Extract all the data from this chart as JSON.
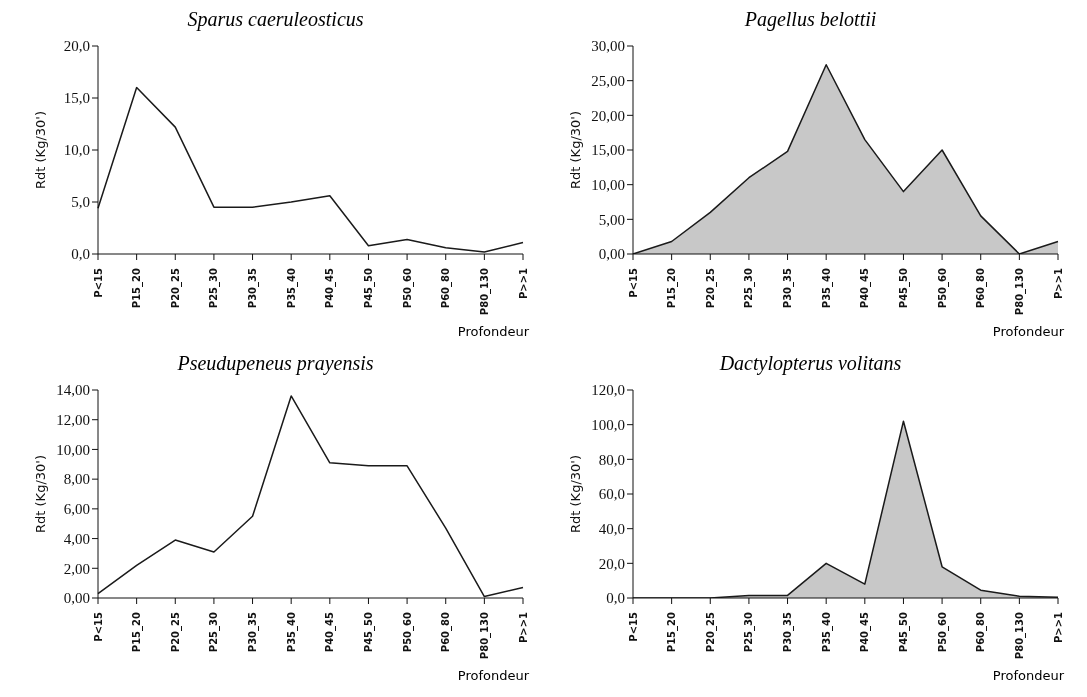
{
  "chart_data": [
    {
      "type": "line",
      "title": "Sparus caeruleosticus",
      "xlabel": "Profondeur",
      "ylabel": "Rdt (Kg/30')",
      "categories": [
        "P<15",
        "P15_20",
        "P20_25",
        "P25_30",
        "P30_35",
        "P35_40",
        "P40_45",
        "P45_50",
        "P50_60",
        "P60_80",
        "P80_130",
        "P>>1"
      ],
      "series": [
        {
          "color": "#1a1a1a",
          "values": [
            4.4,
            16.0,
            12.2,
            4.5,
            4.5,
            5.0,
            5.6,
            0.8,
            1.4,
            0.6,
            0.2,
            1.1
          ]
        }
      ],
      "ylim": [
        0,
        20
      ],
      "yticks": [
        {
          "value": 0,
          "label": "0,0"
        },
        {
          "value": 5,
          "label": "5,0"
        },
        {
          "value": 10,
          "label": "10,0"
        },
        {
          "value": 15,
          "label": "15,0"
        },
        {
          "value": 20,
          "label": "20,0"
        }
      ],
      "grid": false,
      "marker": "none"
    },
    {
      "type": "area",
      "title": "Pagellus belottii",
      "xlabel": "Profondeur",
      "ylabel": "Rdt (Kg/30')",
      "categories": [
        "P<15",
        "P15_20",
        "P20_25",
        "P25_30",
        "P30_35",
        "P35_40",
        "P40_45",
        "P45_50",
        "P50_60",
        "P60_80",
        "P80_130",
        "P>>1"
      ],
      "series": [
        {
          "color": "#c8c8c8",
          "values": [
            0,
            1.8,
            6.0,
            11.0,
            14.8,
            27.3,
            16.5,
            9.0,
            15.0,
            5.5,
            0,
            1.8
          ]
        }
      ],
      "ylim": [
        0,
        30
      ],
      "yticks": [
        {
          "value": 0,
          "label": "0,00"
        },
        {
          "value": 5,
          "label": "5,00"
        },
        {
          "value": 10,
          "label": "10,00"
        },
        {
          "value": 15,
          "label": "15,00"
        },
        {
          "value": 20,
          "label": "20,00"
        },
        {
          "value": 25,
          "label": "25,00"
        },
        {
          "value": 30,
          "label": "30,00"
        }
      ],
      "grid": false,
      "marker": "none"
    },
    {
      "type": "line",
      "title": "Pseudupeneus prayensis",
      "xlabel": "Profondeur",
      "ylabel": "Rdt (Kg/30')",
      "categories": [
        "P<15",
        "P15_20",
        "P20_25",
        "P25_30",
        "P30_35",
        "P35_40",
        "P40_45",
        "P45_50",
        "P50_60",
        "P60_80",
        "P80_130",
        "P>>1"
      ],
      "series": [
        {
          "color": "#1a1a1a",
          "values": [
            0.3,
            2.2,
            3.9,
            3.1,
            5.5,
            13.6,
            9.1,
            8.9,
            8.9,
            4.7,
            0.1,
            0.7
          ]
        }
      ],
      "ylim": [
        0,
        14
      ],
      "yticks": [
        {
          "value": 0,
          "label": "0,00"
        },
        {
          "value": 2,
          "label": "2,00"
        },
        {
          "value": 4,
          "label": "4,00"
        },
        {
          "value": 6,
          "label": "6,00"
        },
        {
          "value": 8,
          "label": "8,00"
        },
        {
          "value": 10,
          "label": "10,00"
        },
        {
          "value": 12,
          "label": "12,00"
        },
        {
          "value": 14,
          "label": "14,00"
        }
      ],
      "grid": false,
      "marker": "none"
    },
    {
      "type": "area",
      "title": "Dactylopterus volitans",
      "xlabel": "Profondeur",
      "ylabel": "Rdt (Kg/30')",
      "categories": [
        "P<15",
        "P15_20",
        "P20_25",
        "P25_30",
        "P30_35",
        "P35_40",
        "P40_45",
        "P45_50",
        "P50_60",
        "P60_80",
        "P80_130",
        "P>>1"
      ],
      "series": [
        {
          "color": "#c8c8c8",
          "values": [
            0,
            0,
            0,
            1.5,
            1.5,
            20,
            8,
            102,
            18,
            4.5,
            1,
            0.5
          ]
        }
      ],
      "ylim": [
        0,
        120
      ],
      "yticks": [
        {
          "value": 0,
          "label": "0,0"
        },
        {
          "value": 20,
          "label": "20,0"
        },
        {
          "value": 40,
          "label": "40,0"
        },
        {
          "value": 60,
          "label": "60,0"
        },
        {
          "value": 80,
          "label": "80,0"
        },
        {
          "value": 100,
          "label": "100,0"
        },
        {
          "value": 120,
          "label": "120,0"
        }
      ],
      "grid": false,
      "marker": "none"
    }
  ]
}
